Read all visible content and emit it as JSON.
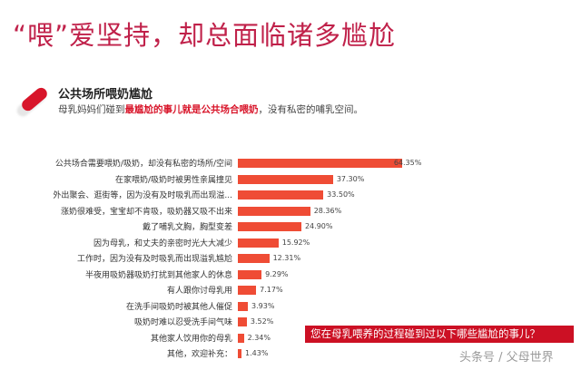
{
  "header": {
    "title": "“喂”爱坚持，却总面临诸多尴尬"
  },
  "section": {
    "icon": "red-pill-icon",
    "title": "公共场所喂奶尴尬",
    "desc_prefix": "母乳妈妈们碰到",
    "desc_highlight": "最尴尬的事儿就是公共场合喂奶",
    "desc_suffix": "，没有私密的哺乳空间。"
  },
  "chart_data": {
    "type": "bar",
    "orientation": "horizontal",
    "title": "您在母乳喂养的过程碰到过以下哪些尴尬的事儿？",
    "categories": [
      "公共场合需要喂奶/吸奶，却没有私密的场所/空间",
      "在家喂奶/吸奶时被男性亲属撞见",
      "外出聚会、逛街等，因为没有及时吸乳而出现溢...",
      "涨奶很难受，宝宝却不肯吸，吸奶器又吸不出来",
      "戴了哺乳文胸，胸型变差",
      "因为母乳，和丈夫的亲密时光大大减少",
      "工作时，因为没有及时吸乳而出现溢乳尴尬",
      "半夜用吸奶器吸奶打扰到其他家人的休息",
      "有人跟你讨母乳用",
      "在洗手间吸奶时被其他人催促",
      "吸奶时难以忍受洗手间气味",
      "其他家人饮用你的母乳",
      "其他，欢迎补充："
    ],
    "values": [
      64.35,
      37.3,
      33.5,
      28.36,
      24.9,
      15.92,
      12.31,
      9.29,
      7.17,
      3.93,
      3.52,
      2.34,
      1.43
    ],
    "value_labels": [
      "64.35%",
      "37.30%",
      "33.50%",
      "28.36%",
      "24.90%",
      "15.92%",
      "12.31%",
      "9.29%",
      "7.17%",
      "3.93%",
      "3.52%",
      "2.34%",
      "1.43%"
    ],
    "xlabel": "",
    "ylabel": "",
    "unit": "%",
    "bar_color": "#ef4c35",
    "grid": false,
    "legend": "none"
  },
  "banner": {
    "text": "您在母乳喂养的过程碰到过以下哪些尴尬的事儿？",
    "color": "#cc1024"
  },
  "watermark": {
    "text": "头条号 / 父母世界"
  }
}
